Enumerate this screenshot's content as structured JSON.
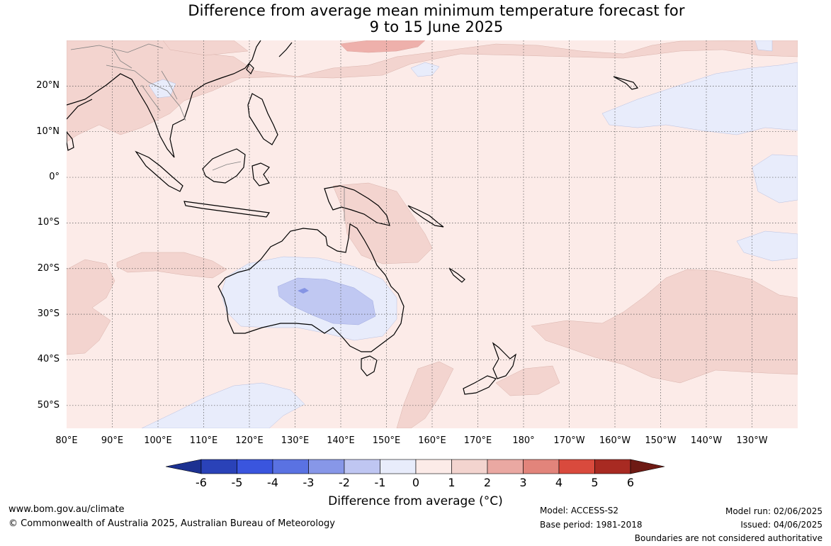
{
  "title": {
    "line1": "Difference from average mean minimum temperature forecast for",
    "line2": "9 to 15 June 2025"
  },
  "map": {
    "lat_labels": [
      "20°N",
      "10°N",
      "0°",
      "10°S",
      "20°S",
      "30°S",
      "40°S",
      "50°S"
    ],
    "lon_labels": [
      "80°E",
      "90°E",
      "100°E",
      "110°E",
      "120°E",
      "130°E",
      "140°E",
      "150°E",
      "160°E",
      "170°E",
      "180°",
      "170°W",
      "160°W",
      "150°W",
      "140°W",
      "130°W"
    ],
    "extent": {
      "lon_min": 80,
      "lon_max": 240,
      "lat_min": -55,
      "lat_max": 30
    },
    "colors": {
      "ocean_base": "#fcebe8",
      "warm_1_2": "#f3d4cf",
      "warm_2_3": "#eeb0ab",
      "cool_0_1": "#e8ecfb",
      "cool_1_2": "#c0c8f2",
      "cool_2_3": "#8594e4",
      "land_outline": "#000000",
      "border": "#808080",
      "grid": "#555555"
    }
  },
  "colorbar": {
    "ticks": [
      "-6",
      "-5",
      "-4",
      "-3",
      "-2",
      "-1",
      "0",
      "1",
      "2",
      "3",
      "4",
      "5",
      "6"
    ],
    "colors": [
      "#1c3191",
      "#2a42b8",
      "#3a55de",
      "#5a72e2",
      "#8797e8",
      "#bfc6f2",
      "#e8ecfb",
      "#fcebe8",
      "#f3d4cf",
      "#eaa8a2",
      "#e2847b",
      "#d94a3d",
      "#a82a22",
      "#6e1a14"
    ],
    "label": "Difference from average (°C)"
  },
  "footer": {
    "website": "www.bom.gov.au/climate",
    "copyright": "© Commonwealth of Australia 2025, Australian Bureau of Meteorology",
    "model": "Model: ACCESS-S2",
    "base_period": "Base period: 1981-2018",
    "model_run": "Model run: 02/06/2025",
    "issued": "Issued: 04/06/2025",
    "disclaimer": "Boundaries are not considered authoritative"
  }
}
